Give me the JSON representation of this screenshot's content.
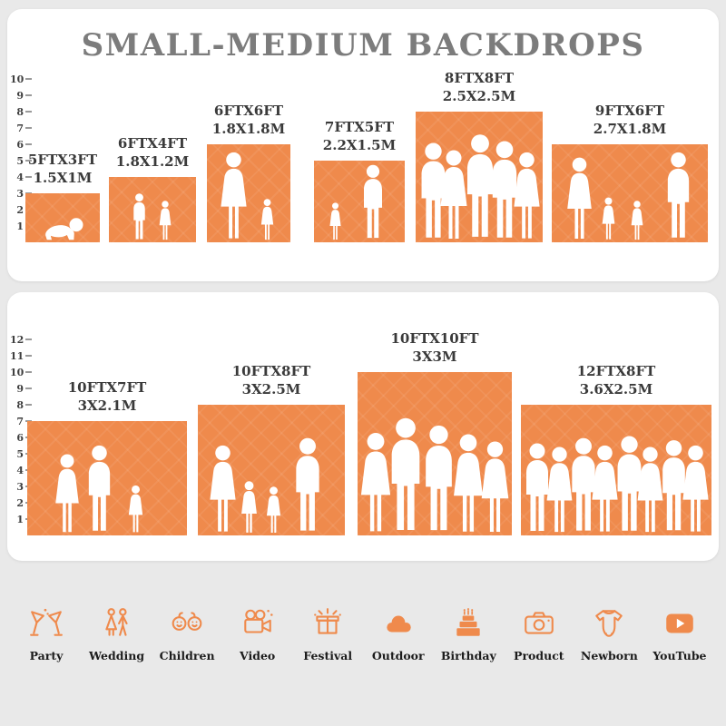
{
  "title": "SMALL-MEDIUM BACKDROPS",
  "colors": {
    "accent": "#EF8A4C",
    "card": "#FFFFFF",
    "background": "#E9E9E9",
    "title_gray": "#7C7C7C",
    "label_dark": "#3A3A3A"
  },
  "panel_top": {
    "ruler": [
      1,
      2,
      3,
      4,
      5,
      6,
      7,
      8,
      9,
      10
    ],
    "items": [
      {
        "ft": "5FTX3FT",
        "m": "1.5X1M"
      },
      {
        "ft": "6FTX4FT",
        "m": "1.8X1.2M"
      },
      {
        "ft": "6FTX6FT",
        "m": "1.8X1.8M"
      },
      {
        "ft": "7FTX5FT",
        "m": "2.2X1.5M"
      },
      {
        "ft": "8FTX8FT",
        "m": "2.5X2.5M"
      },
      {
        "ft": "9FTX6FT",
        "m": "2.7X1.8M"
      }
    ]
  },
  "panel_bottom": {
    "ruler": [
      1,
      2,
      3,
      4,
      5,
      6,
      7,
      8,
      9,
      10,
      11,
      12
    ],
    "items": [
      {
        "ft": "10FTX7FT",
        "m": "3X2.1M"
      },
      {
        "ft": "10FTX8FT",
        "m": "3X2.5M"
      },
      {
        "ft": "10FTX10FT",
        "m": "3X3M"
      },
      {
        "ft": "12FTX8FT",
        "m": "3.6X2.5M"
      }
    ]
  },
  "categories": [
    {
      "label": "Party",
      "icon": "party-icon"
    },
    {
      "label": "Wedding",
      "icon": "wedding-icon"
    },
    {
      "label": "Children",
      "icon": "children-icon"
    },
    {
      "label": "Video",
      "icon": "video-icon"
    },
    {
      "label": "Festival",
      "icon": "festival-icon"
    },
    {
      "label": "Outdoor",
      "icon": "outdoor-icon"
    },
    {
      "label": "Birthday",
      "icon": "birthday-icon"
    },
    {
      "label": "Product",
      "icon": "product-icon"
    },
    {
      "label": "Newborn",
      "icon": "newborn-icon"
    },
    {
      "label": "YouTube",
      "icon": "youtube-icon"
    }
  ]
}
